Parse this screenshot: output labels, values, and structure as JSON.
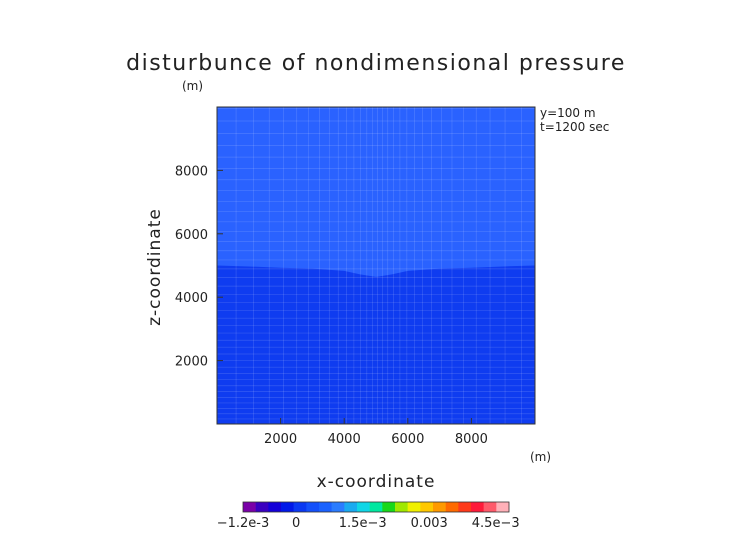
{
  "chart_data": {
    "type": "heatmap",
    "title": "disturbunce of nondimensional pressure",
    "xlabel": "x-coordinate",
    "ylabel": "z-coordinate",
    "x_unit": "(m)",
    "z_unit": "(m)",
    "xlim": [
      0,
      10000
    ],
    "zlim": [
      0,
      10000
    ],
    "x_ticks": [
      2000,
      4000,
      6000,
      8000
    ],
    "z_ticks": [
      2000,
      4000,
      6000,
      8000
    ],
    "annotations": [
      "y=100 m",
      "t=1200 sec"
    ],
    "regions": [
      {
        "color": "#2a62ff",
        "value_range": "0 to 1.5e-3",
        "location": "upper layer"
      },
      {
        "color": "#0f3cf0",
        "value_range": "-1.2e-3 to 0",
        "location": "lower layer"
      }
    ],
    "boundary_x": [
      0,
      1000,
      2000,
      3000,
      4000,
      4500,
      5000,
      5500,
      6000,
      7000,
      8000,
      9000,
      10000
    ],
    "boundary_z": [
      5000,
      4970,
      4930,
      4900,
      4830,
      4720,
      4640,
      4720,
      4830,
      4900,
      4930,
      4970,
      5000
    ],
    "colorbar": {
      "labels": [
        "-1.2e-3",
        "0",
        "1.5e-3",
        "0.003",
        "4.5e-3"
      ],
      "label_values": [
        -0.0012,
        0,
        0.0015,
        0.003,
        0.0045
      ],
      "vmin": -0.0012,
      "vmax": 0.0048,
      "colors": [
        "#7a00a8",
        "#3a00c0",
        "#1400d8",
        "#0018e8",
        "#0a38f2",
        "#1450fa",
        "#1a62ff",
        "#2a7cff",
        "#1aaaf0",
        "#10d6e6",
        "#00e8a0",
        "#18d818",
        "#a0e800",
        "#f0f000",
        "#ffc800",
        "#ff9a00",
        "#ff6a00",
        "#ff3a1a",
        "#ff1a3a",
        "#ff5a6a",
        "#ffb0b8"
      ]
    }
  }
}
